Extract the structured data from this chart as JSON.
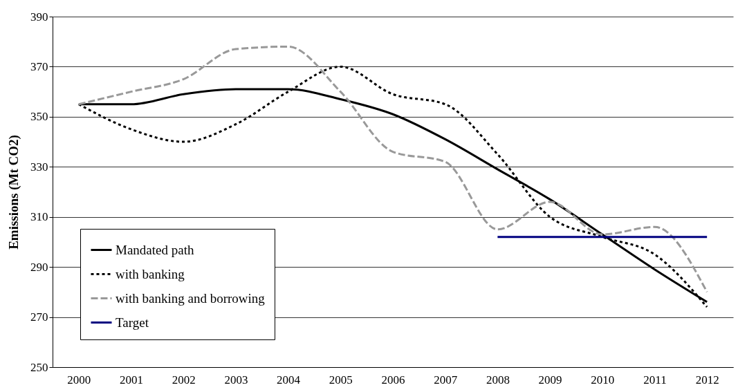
{
  "chart_data": {
    "type": "line",
    "ylabel": "Emissions (Mt CO2)",
    "categories": [
      "2000",
      "2001",
      "2002",
      "2003",
      "2004",
      "2005",
      "2006",
      "2007",
      "2008",
      "2009",
      "2010",
      "2011",
      "2012"
    ],
    "ylim": [
      250,
      390
    ],
    "yticks": [
      250,
      270,
      290,
      310,
      330,
      350,
      370,
      390
    ],
    "grid": "y",
    "legend": "bottom left",
    "series": [
      {
        "name": "Mandated path",
        "color": "#000000",
        "line_style": "solid",
        "values": [
          355,
          355,
          359,
          361,
          361,
          357,
          351,
          341,
          329,
          317,
          303,
          289,
          276
        ]
      },
      {
        "name": " with banking",
        "color": "#000000",
        "line_style": "dotted",
        "values": [
          355,
          345,
          340,
          347,
          360,
          370,
          359,
          355,
          335,
          310,
          302,
          295,
          274
        ]
      },
      {
        "name": " with banking and borrowing",
        "color": "#999999",
        "line_style": "dashed",
        "values": [
          355,
          360,
          365,
          377,
          378,
          360,
          336,
          332,
          305,
          316,
          303,
          306,
          280
        ]
      },
      {
        "name": "Target",
        "color": "#000080",
        "line_style": "solid",
        "values": [
          null,
          null,
          null,
          null,
          null,
          null,
          null,
          null,
          302,
          302,
          302,
          302,
          302
        ]
      }
    ]
  }
}
